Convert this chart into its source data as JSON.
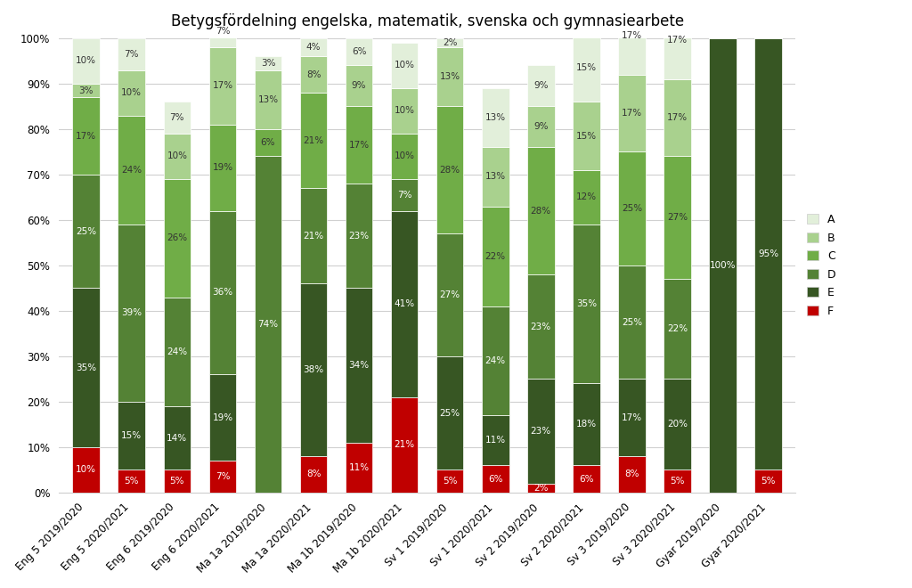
{
  "title": "Betygsfördelning engelska, matematik, svenska och gymnasiearbete",
  "categories": [
    "Eng 5 2019/2020",
    "Eng 5 2020/2021",
    "Eng 6 2019/2020",
    "Eng 6 2020/2021",
    "Ma 1a 2019/2020",
    "Ma 1a 2020/2021",
    "Ma 1b 2019/2020",
    "Ma 1b 2020/2021",
    "Sv 1 2019/2020",
    "Sv 1 2020/2021",
    "Sv 2 2019/2020",
    "Sv 2 2020/2021",
    "Sv 3 2019/2020",
    "Sv 3 2020/2021",
    "Gyar 2019/2020",
    "Gyar 2020/2021"
  ],
  "grades": {
    "F": [
      10,
      5,
      5,
      7,
      0,
      8,
      11,
      21,
      5,
      6,
      2,
      6,
      8,
      5,
      0,
      5
    ],
    "E": [
      35,
      15,
      14,
      19,
      0,
      38,
      34,
      41,
      25,
      11,
      23,
      18,
      17,
      20,
      100,
      95
    ],
    "D": [
      25,
      39,
      24,
      36,
      74,
      21,
      23,
      7,
      27,
      24,
      23,
      35,
      25,
      22,
      0,
      0
    ],
    "C": [
      17,
      24,
      26,
      19,
      6,
      21,
      17,
      10,
      28,
      22,
      28,
      12,
      25,
      27,
      0,
      0
    ],
    "B": [
      3,
      10,
      10,
      17,
      13,
      8,
      9,
      10,
      13,
      13,
      9,
      15,
      17,
      17,
      0,
      0
    ],
    "A": [
      10,
      7,
      7,
      7,
      3,
      4,
      6,
      10,
      2,
      13,
      9,
      15,
      17,
      17,
      0,
      0
    ]
  },
  "colors": {
    "F": "#c00000",
    "E": "#375623",
    "D": "#548235",
    "C": "#70ad47",
    "B": "#a9d18e",
    "A": "#e2efda"
  },
  "bar_width": 0.6,
  "background_color": "#ffffff",
  "grid_color": "#d0d0d0",
  "title_fontsize": 12,
  "label_fontsize": 7.5,
  "tick_fontsize": 8.5
}
